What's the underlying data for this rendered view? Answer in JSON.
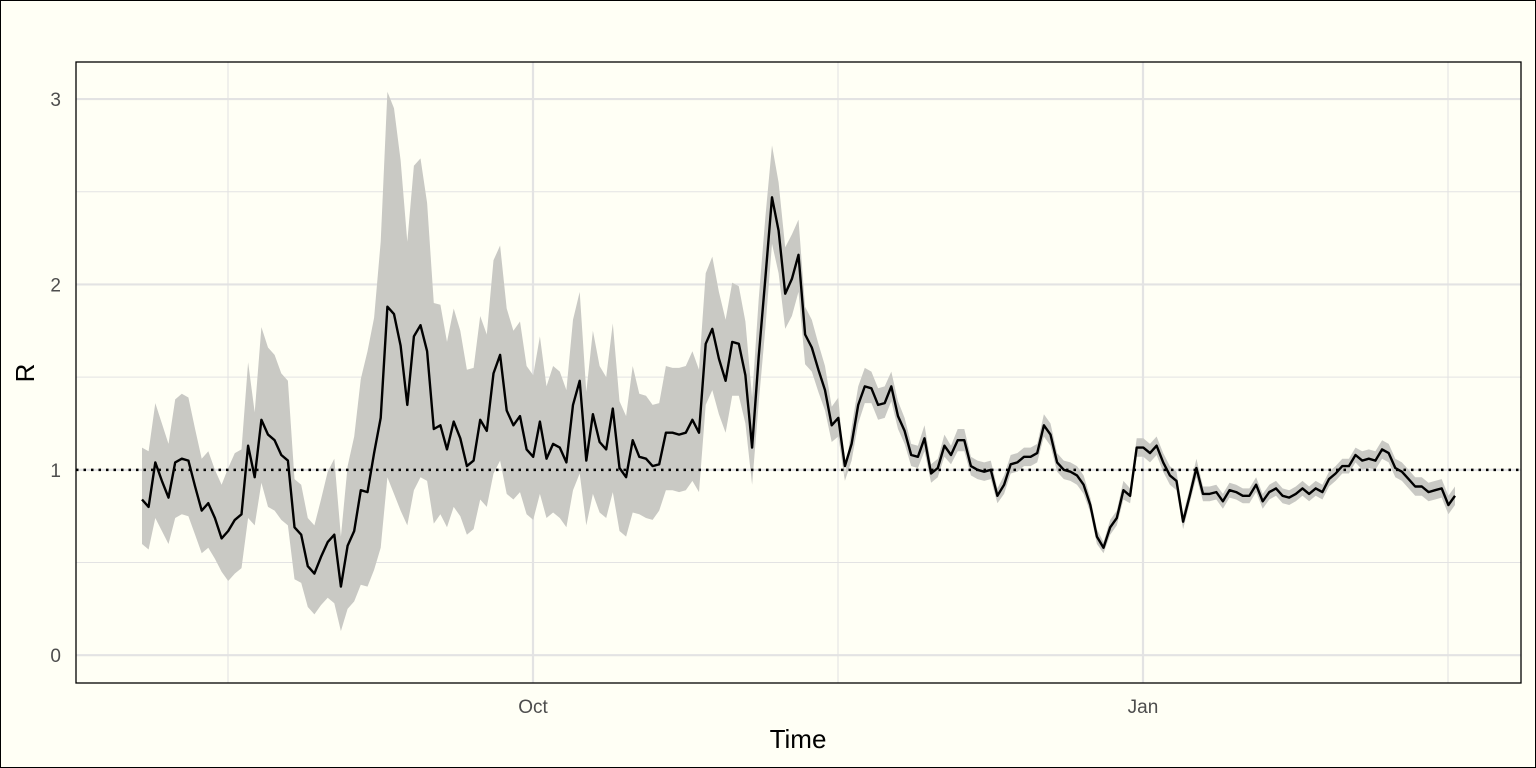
{
  "chart_data": {
    "type": "line",
    "title": "",
    "xlabel": "Time",
    "ylabel": "R",
    "x_tick_labels": [
      "Oct",
      "Jan"
    ],
    "y_tick_labels": [
      "0",
      "1",
      "2",
      "3"
    ],
    "ylim": [
      -0.15,
      3.2
    ],
    "grid": true,
    "legend": "none",
    "reference_line": 1,
    "colors": {
      "background": "#fffff5",
      "ribbon": "#c9c9c4",
      "line": "#000000",
      "grid": "#e3e3e3"
    },
    "series": [
      {
        "values": [
          0.84,
          0.8,
          1.04,
          0.94,
          0.85,
          1.04,
          1.06,
          1.05,
          0.91,
          0.78,
          0.82,
          0.74,
          0.63,
          0.67,
          0.73,
          0.76,
          1.13,
          0.96,
          1.27,
          1.19,
          1.16,
          1.08,
          1.05,
          0.69,
          0.65,
          0.48,
          0.44,
          0.53,
          0.61,
          0.65,
          0.37,
          0.59,
          0.67,
          0.89,
          0.88,
          1.09,
          1.28,
          1.88,
          1.84,
          1.67,
          1.35,
          1.72,
          1.78,
          1.64,
          1.22,
          1.24,
          1.11,
          1.26,
          1.17,
          1.02,
          1.05,
          1.27,
          1.21,
          1.52,
          1.62,
          1.32,
          1.24,
          1.29,
          1.11,
          1.07,
          1.26,
          1.06,
          1.14,
          1.12,
          1.04,
          1.35,
          1.48,
          1.05,
          1.3,
          1.15,
          1.11,
          1.33,
          1.01,
          0.96,
          1.16,
          1.07,
          1.06,
          1.02,
          1.03,
          1.2,
          1.2,
          1.19,
          1.2,
          1.27,
          1.2,
          1.68,
          1.76,
          1.6,
          1.48,
          1.69,
          1.68,
          1.51,
          1.12,
          1.61,
          2.03,
          2.47,
          2.29,
          1.95,
          2.03,
          2.16,
          1.73,
          1.66,
          1.54,
          1.43,
          1.24,
          1.28,
          1.02,
          1.14,
          1.35,
          1.45,
          1.44,
          1.35,
          1.36,
          1.45,
          1.29,
          1.21,
          1.08,
          1.07,
          1.17,
          0.98,
          1.01,
          1.13,
          1.08,
          1.16,
          1.16,
          1.02,
          1.0,
          0.99,
          1.0,
          0.86,
          0.92,
          1.03,
          1.04,
          1.07,
          1.07,
          1.09,
          1.24,
          1.19,
          1.04,
          1.0,
          0.99,
          0.97,
          0.92,
          0.81,
          0.64,
          0.58,
          0.69,
          0.74,
          0.89,
          0.86,
          1.12,
          1.12,
          1.09,
          1.13,
          1.04,
          0.97,
          0.94,
          0.72,
          0.86,
          1.01,
          0.87,
          0.87,
          0.88,
          0.83,
          0.89,
          0.88,
          0.86,
          0.86,
          0.92,
          0.83,
          0.88,
          0.9,
          0.86,
          0.85,
          0.87,
          0.9,
          0.87,
          0.9,
          0.88,
          0.95,
          0.98,
          1.02,
          1.02,
          1.08,
          1.05,
          1.06,
          1.05,
          1.11,
          1.09,
          1.01,
          0.99,
          0.95,
          0.91,
          0.91,
          0.88,
          0.89,
          0.9,
          0.81,
          0.86
        ]
      },
      {
        "name": "lower",
        "values": [
          0.6,
          0.57,
          0.74,
          0.67,
          0.6,
          0.74,
          0.76,
          0.75,
          0.65,
          0.55,
          0.58,
          0.52,
          0.45,
          0.4,
          0.44,
          0.47,
          0.74,
          0.7,
          0.93,
          0.8,
          0.78,
          0.73,
          0.7,
          0.41,
          0.39,
          0.26,
          0.22,
          0.27,
          0.31,
          0.28,
          0.13,
          0.25,
          0.29,
          0.38,
          0.37,
          0.46,
          0.58,
          0.96,
          0.87,
          0.78,
          0.7,
          0.89,
          0.96,
          0.94,
          0.71,
          0.76,
          0.69,
          0.8,
          0.75,
          0.65,
          0.68,
          0.84,
          0.8,
          0.98,
          1.05,
          0.87,
          0.84,
          0.88,
          0.76,
          0.73,
          0.87,
          0.74,
          0.77,
          0.74,
          0.69,
          0.89,
          0.98,
          0.7,
          0.87,
          0.77,
          0.74,
          0.88,
          0.67,
          0.64,
          0.77,
          0.76,
          0.74,
          0.73,
          0.78,
          0.89,
          0.89,
          0.88,
          0.89,
          0.94,
          0.88,
          1.35,
          1.43,
          1.3,
          1.2,
          1.4,
          1.4,
          1.25,
          0.92,
          1.36,
          1.76,
          2.22,
          2.06,
          1.76,
          1.83,
          1.96,
          1.57,
          1.53,
          1.42,
          1.32,
          1.15,
          1.18,
          0.94,
          1.05,
          1.25,
          1.36,
          1.36,
          1.27,
          1.28,
          1.37,
          1.22,
          1.14,
          1.02,
          1.01,
          1.1,
          0.93,
          0.96,
          1.07,
          1.03,
          1.1,
          1.1,
          0.97,
          0.95,
          0.94,
          0.95,
          0.82,
          0.87,
          0.98,
          0.99,
          1.02,
          1.02,
          1.04,
          1.18,
          1.13,
          0.99,
          0.95,
          0.94,
          0.92,
          0.87,
          0.77,
          0.6,
          0.55,
          0.65,
          0.7,
          0.84,
          0.82,
          1.07,
          1.07,
          1.04,
          1.08,
          0.99,
          0.92,
          0.89,
          0.68,
          0.82,
          0.96,
          0.83,
          0.83,
          0.84,
          0.79,
          0.85,
          0.84,
          0.82,
          0.82,
          0.88,
          0.79,
          0.84,
          0.86,
          0.82,
          0.81,
          0.83,
          0.86,
          0.83,
          0.86,
          0.84,
          0.91,
          0.94,
          0.98,
          0.98,
          1.04,
          1.0,
          1.01,
          1.0,
          1.06,
          1.04,
          0.96,
          0.94,
          0.9,
          0.86,
          0.86,
          0.83,
          0.84,
          0.85,
          0.76,
          0.81
        ]
      },
      {
        "name": "upper",
        "values": [
          1.12,
          1.1,
          1.36,
          1.25,
          1.14,
          1.38,
          1.41,
          1.39,
          1.22,
          1.06,
          1.1,
          1.0,
          0.92,
          1.01,
          1.09,
          1.11,
          1.58,
          1.31,
          1.77,
          1.66,
          1.62,
          1.52,
          1.48,
          0.95,
          0.92,
          0.74,
          0.7,
          0.84,
          0.99,
          1.06,
          0.64,
          1.02,
          1.18,
          1.49,
          1.64,
          1.82,
          2.23,
          3.04,
          2.95,
          2.67,
          2.23,
          2.64,
          2.68,
          2.44,
          1.9,
          1.89,
          1.69,
          1.87,
          1.75,
          1.54,
          1.55,
          1.83,
          1.73,
          2.13,
          2.21,
          1.87,
          1.75,
          1.8,
          1.56,
          1.51,
          1.72,
          1.45,
          1.56,
          1.53,
          1.43,
          1.81,
          1.96,
          1.42,
          1.75,
          1.56,
          1.5,
          1.79,
          1.37,
          1.29,
          1.56,
          1.41,
          1.4,
          1.35,
          1.36,
          1.56,
          1.55,
          1.55,
          1.56,
          1.64,
          1.54,
          2.06,
          2.15,
          1.96,
          1.81,
          2.01,
          1.99,
          1.8,
          1.39,
          1.92,
          2.36,
          2.75,
          2.55,
          2.2,
          2.27,
          2.35,
          1.88,
          1.81,
          1.68,
          1.56,
          1.34,
          1.39,
          0.97,
          1.23,
          1.45,
          1.55,
          1.53,
          1.44,
          1.45,
          1.53,
          1.37,
          1.28,
          1.14,
          1.13,
          1.24,
          1.03,
          1.06,
          1.19,
          1.13,
          1.22,
          1.22,
          1.07,
          1.05,
          1.04,
          1.05,
          0.9,
          0.97,
          1.08,
          1.09,
          1.12,
          1.12,
          1.14,
          1.3,
          1.25,
          1.09,
          1.05,
          1.04,
          1.02,
          0.97,
          0.85,
          0.68,
          0.61,
          0.73,
          0.78,
          0.94,
          0.9,
          1.17,
          1.17,
          1.14,
          1.18,
          1.09,
          1.02,
          0.99,
          0.76,
          0.9,
          1.06,
          0.91,
          0.91,
          0.92,
          0.87,
          0.93,
          0.92,
          0.9,
          0.9,
          0.96,
          0.87,
          0.92,
          0.94,
          0.9,
          0.89,
          0.91,
          0.94,
          0.91,
          0.94,
          0.92,
          0.99,
          1.02,
          1.06,
          1.06,
          1.12,
          1.1,
          1.11,
          1.1,
          1.16,
          1.14,
          1.06,
          1.04,
          1.0,
          0.96,
          0.96,
          0.93,
          0.94,
          0.95,
          0.86,
          0.91
        ]
      }
    ]
  }
}
